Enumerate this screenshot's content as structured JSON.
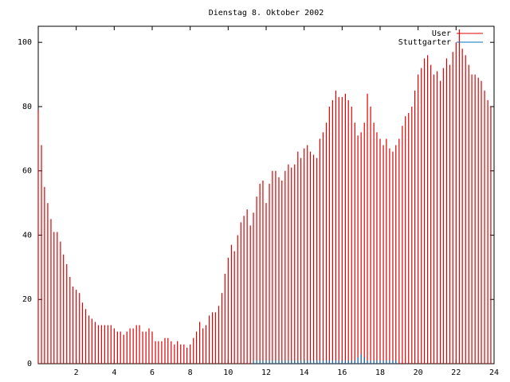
{
  "chart_data": {
    "type": "impulses",
    "title": "Dienstag 8. Oktober 2002",
    "x": [
      0,
      0.17,
      0.33,
      0.5,
      0.67,
      0.83,
      1,
      1.17,
      1.33,
      1.5,
      1.67,
      1.83,
      2,
      2.17,
      2.33,
      2.5,
      2.67,
      2.83,
      3,
      3.17,
      3.33,
      3.5,
      3.67,
      3.83,
      4,
      4.17,
      4.33,
      4.5,
      4.67,
      4.83,
      5,
      5.17,
      5.33,
      5.5,
      5.67,
      5.83,
      6,
      6.17,
      6.33,
      6.5,
      6.67,
      6.83,
      7,
      7.17,
      7.33,
      7.5,
      7.67,
      7.83,
      8,
      8.17,
      8.33,
      8.5,
      8.67,
      8.83,
      9,
      9.17,
      9.33,
      9.5,
      9.67,
      9.83,
      10,
      10.17,
      10.33,
      10.5,
      10.67,
      10.83,
      11,
      11.17,
      11.33,
      11.5,
      11.67,
      11.83,
      12,
      12.17,
      12.33,
      12.5,
      12.67,
      12.83,
      13,
      13.17,
      13.33,
      13.5,
      13.67,
      13.83,
      14,
      14.17,
      14.33,
      14.5,
      14.67,
      14.83,
      15,
      15.17,
      15.33,
      15.5,
      15.67,
      15.83,
      16,
      16.17,
      16.33,
      16.5,
      16.67,
      16.83,
      17,
      17.17,
      17.33,
      17.5,
      17.67,
      17.83,
      18,
      18.17,
      18.33,
      18.5,
      18.67,
      18.83,
      19,
      19.17,
      19.33,
      19.5,
      19.67,
      19.83,
      20,
      20.17,
      20.33,
      20.5,
      20.67,
      20.83,
      21,
      21.17,
      21.33,
      21.5,
      21.67,
      21.83,
      22,
      22.17,
      22.33,
      22.5,
      22.67,
      22.83,
      23,
      23.17,
      23.33,
      23.5,
      23.67,
      23.83
    ],
    "series": [
      {
        "name": "User",
        "color": "#e00000",
        "values": [
          79,
          68,
          55,
          50,
          45,
          41,
          41,
          38,
          34,
          31,
          27,
          24,
          23,
          22,
          19,
          17,
          15,
          14,
          13,
          12,
          12,
          12,
          12,
          12,
          11,
          10,
          10,
          9,
          10,
          11,
          11,
          12,
          12,
          10,
          10,
          11,
          10,
          7,
          7,
          7,
          8,
          8,
          7,
          6,
          7,
          6,
          6,
          5,
          6,
          8,
          10,
          13,
          11,
          12,
          15,
          16,
          16,
          18,
          22,
          28,
          33,
          37,
          35,
          40,
          44,
          46,
          48,
          43,
          47,
          52,
          56,
          57,
          50,
          56,
          60,
          60,
          58,
          57,
          60,
          62,
          61,
          62,
          66,
          64,
          67,
          68,
          66,
          65,
          64,
          70,
          72,
          75,
          80,
          82,
          85,
          83,
          83,
          84,
          82,
          80,
          75,
          71,
          72,
          75,
          84,
          80,
          75,
          72,
          70,
          68,
          70,
          67,
          66,
          68,
          70,
          74,
          77,
          78,
          80,
          85,
          90,
          92,
          95,
          96,
          93,
          90,
          91,
          88,
          92,
          95,
          93,
          97,
          100,
          104,
          98,
          96,
          93,
          90,
          90,
          89,
          88,
          85,
          82,
          80
        ]
      },
      {
        "name": "Stuttgarter",
        "color": "#0070c0",
        "values": [
          0,
          0,
          0,
          0,
          0,
          0,
          0,
          0,
          0,
          0,
          0,
          0,
          0,
          0,
          0,
          0,
          0,
          0,
          0,
          0,
          0,
          0,
          0,
          0,
          0,
          0,
          0,
          0,
          0,
          0,
          0,
          0,
          0,
          0,
          0,
          0,
          0,
          0,
          0,
          0,
          0,
          0,
          0,
          0,
          0,
          0,
          0,
          0,
          0,
          0,
          0,
          0,
          0,
          0,
          0,
          0,
          0,
          0,
          0,
          0,
          0,
          0,
          0,
          0,
          0,
          0,
          0,
          0,
          1,
          1,
          1,
          1,
          1,
          1,
          1,
          1,
          1,
          1,
          1,
          1,
          1,
          1,
          1,
          1,
          1,
          1,
          1,
          1,
          1,
          1,
          1,
          1,
          1,
          1,
          1,
          1,
          1,
          1,
          1,
          1,
          1,
          2,
          3,
          2,
          1,
          1,
          1,
          1,
          1,
          1,
          1,
          1,
          1,
          1,
          0,
          0,
          0,
          0,
          0,
          0,
          0,
          0,
          0,
          0,
          0,
          0,
          0,
          0,
          0,
          0,
          0,
          0,
          0,
          0,
          0,
          0,
          0,
          0,
          0,
          0,
          0,
          0,
          0,
          0
        ]
      }
    ],
    "xlim": [
      0,
      24
    ],
    "xticks": [
      2,
      4,
      6,
      8,
      10,
      12,
      14,
      16,
      18,
      20,
      22,
      24
    ],
    "ylim": [
      0,
      105
    ],
    "yticks": [
      0,
      20,
      40,
      60,
      80,
      100
    ],
    "legend": "upper right"
  }
}
